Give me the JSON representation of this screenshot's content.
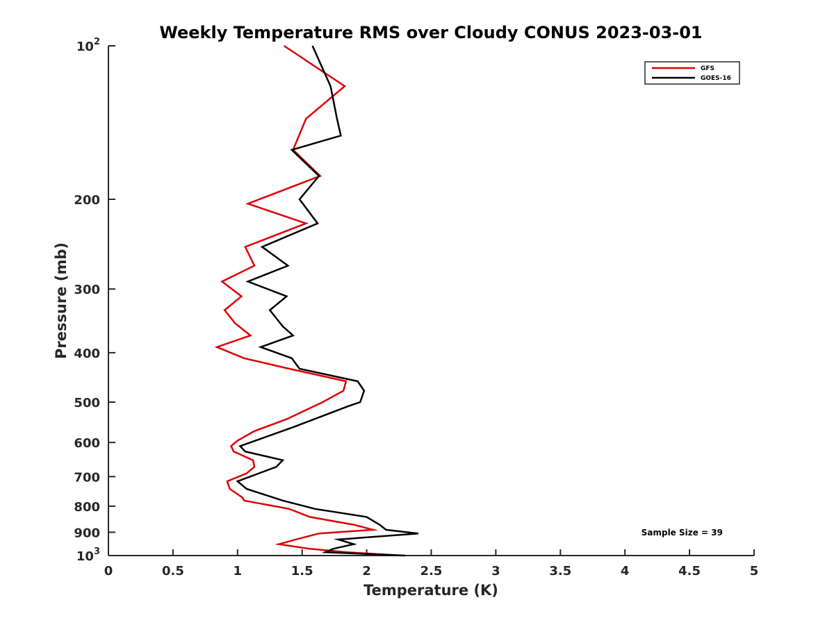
{
  "chart_data": {
    "type": "line",
    "title": "Weekly Temperature RMS over Cloudy CONUS 2023-03-01",
    "xlabel": "Temperature (K)",
    "ylabel": "Pressure (mb)",
    "xlim": [
      0,
      5
    ],
    "ylim": [
      100,
      1000
    ],
    "y_scale": "log",
    "y_reversed": true,
    "grid": false,
    "legend_position": "top-right",
    "x_ticks": [
      "0",
      "0.5",
      "1",
      "1.5",
      "2",
      "2.5",
      "3",
      "3.5",
      "4",
      "4.5",
      "5"
    ],
    "y_ticks": [
      {
        "value": 100,
        "base": "10",
        "exp": "2"
      },
      {
        "value": 200,
        "label": "200"
      },
      {
        "value": 300,
        "label": "300"
      },
      {
        "value": 400,
        "label": "400"
      },
      {
        "value": 500,
        "label": "500"
      },
      {
        "value": 600,
        "label": "600"
      },
      {
        "value": 700,
        "label": "700"
      },
      {
        "value": 800,
        "label": "800"
      },
      {
        "value": 900,
        "label": "900"
      },
      {
        "value": 1000,
        "base": "10",
        "exp": "3"
      }
    ],
    "annotation": "Sample Size = 39",
    "series": [
      {
        "name": "GFS",
        "color": "#dd0000",
        "points": [
          [
            1.36,
            100
          ],
          [
            1.83,
            120
          ],
          [
            1.53,
            139
          ],
          [
            1.43,
            160
          ],
          [
            1.64,
            180
          ],
          [
            1.08,
            204
          ],
          [
            1.53,
            223
          ],
          [
            1.06,
            248
          ],
          [
            1.13,
            270
          ],
          [
            0.88,
            290
          ],
          [
            1.03,
            310
          ],
          [
            0.9,
            330
          ],
          [
            0.98,
            350
          ],
          [
            1.1,
            370
          ],
          [
            0.84,
            390
          ],
          [
            1.05,
            410
          ],
          [
            1.4,
            430
          ],
          [
            1.84,
            455
          ],
          [
            1.82,
            475
          ],
          [
            1.66,
            500
          ],
          [
            1.38,
            540
          ],
          [
            1.13,
            570
          ],
          [
            1.0,
            595
          ],
          [
            0.95,
            610
          ],
          [
            0.97,
            625
          ],
          [
            1.12,
            650
          ],
          [
            1.13,
            670
          ],
          [
            1.07,
            690
          ],
          [
            0.92,
            715
          ],
          [
            0.94,
            740
          ],
          [
            1.04,
            770
          ],
          [
            1.05,
            780
          ],
          [
            1.4,
            810
          ],
          [
            1.56,
            840
          ],
          [
            1.9,
            870
          ],
          [
            2.05,
            890
          ],
          [
            1.63,
            905
          ],
          [
            1.45,
            930
          ],
          [
            1.32,
            950
          ],
          [
            1.56,
            970
          ],
          [
            1.85,
            985
          ],
          [
            2.27,
            1000
          ]
        ]
      },
      {
        "name": "GOES-16",
        "color": "#000000",
        "points": [
          [
            1.58,
            100
          ],
          [
            1.72,
            120
          ],
          [
            1.77,
            139
          ],
          [
            1.8,
            150
          ],
          [
            1.42,
            160
          ],
          [
            1.63,
            180
          ],
          [
            1.48,
            200
          ],
          [
            1.62,
            223
          ],
          [
            1.19,
            248
          ],
          [
            1.39,
            270
          ],
          [
            1.08,
            290
          ],
          [
            1.38,
            310
          ],
          [
            1.25,
            330
          ],
          [
            1.35,
            355
          ],
          [
            1.43,
            370
          ],
          [
            1.18,
            390
          ],
          [
            1.42,
            410
          ],
          [
            1.48,
            430
          ],
          [
            1.93,
            455
          ],
          [
            1.98,
            475
          ],
          [
            1.95,
            500
          ],
          [
            1.85,
            510
          ],
          [
            1.43,
            560
          ],
          [
            1.02,
            610
          ],
          [
            1.06,
            625
          ],
          [
            1.35,
            650
          ],
          [
            1.3,
            670
          ],
          [
            1.0,
            715
          ],
          [
            1.07,
            740
          ],
          [
            1.35,
            780
          ],
          [
            1.6,
            810
          ],
          [
            2.0,
            840
          ],
          [
            2.1,
            870
          ],
          [
            2.15,
            890
          ],
          [
            2.4,
            905
          ],
          [
            1.78,
            930
          ],
          [
            1.9,
            950
          ],
          [
            1.74,
            970
          ],
          [
            1.68,
            985
          ],
          [
            2.3,
            1000
          ]
        ]
      }
    ]
  }
}
